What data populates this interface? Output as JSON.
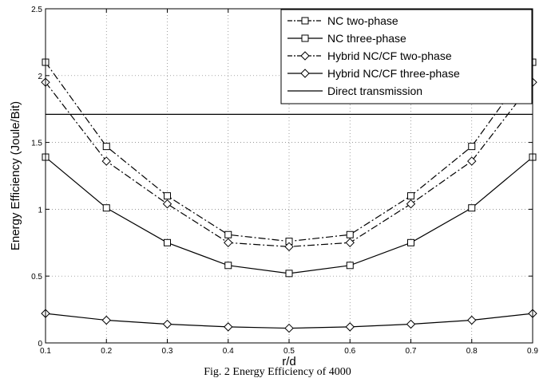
{
  "caption": "Fig. 2 Energy Efficiency of 4000",
  "chart_data": {
    "type": "line",
    "xlabel": "r/d",
    "ylabel": "Energy Efficiency (Joule/Bit)",
    "x": [
      0.1,
      0.2,
      0.3,
      0.4,
      0.5,
      0.6,
      0.7,
      0.8,
      0.9
    ],
    "xlim": [
      0.1,
      0.9
    ],
    "ylim": [
      0,
      2.5
    ],
    "xticks": [
      "0.1",
      "0.2",
      "0.3",
      "0.4",
      "0.5",
      "0.6",
      "0.7",
      "0.8",
      "0.9"
    ],
    "yticks": [
      "0",
      "0.5",
      "1",
      "1.5",
      "2",
      "2.5"
    ],
    "grid": true,
    "legend_position": "top-right",
    "series": [
      {
        "name": "NC two-phase",
        "marker": "square",
        "line": "dashdot",
        "values": [
          2.1,
          1.47,
          1.1,
          0.81,
          0.76,
          0.81,
          1.1,
          1.47,
          2.1
        ]
      },
      {
        "name": "NC three-phase",
        "marker": "square",
        "line": "solid",
        "values": [
          1.39,
          1.01,
          0.75,
          0.58,
          0.52,
          0.58,
          0.75,
          1.01,
          1.39
        ]
      },
      {
        "name": "Hybrid NC/CF two-phase",
        "marker": "diamond",
        "line": "dashdot",
        "values": [
          1.95,
          1.36,
          1.04,
          0.75,
          0.72,
          0.75,
          1.04,
          1.36,
          1.95
        ]
      },
      {
        "name": "Hybrid NC/CF three-phase",
        "marker": "diamond",
        "line": "solid",
        "values": [
          0.22,
          0.17,
          0.14,
          0.12,
          0.11,
          0.12,
          0.14,
          0.17,
          0.22
        ]
      },
      {
        "name": "Direct transmission",
        "marker": "none",
        "line": "solid",
        "values": [
          1.71,
          1.71,
          1.71,
          1.71,
          1.71,
          1.71,
          1.71,
          1.71,
          1.71
        ]
      }
    ]
  }
}
